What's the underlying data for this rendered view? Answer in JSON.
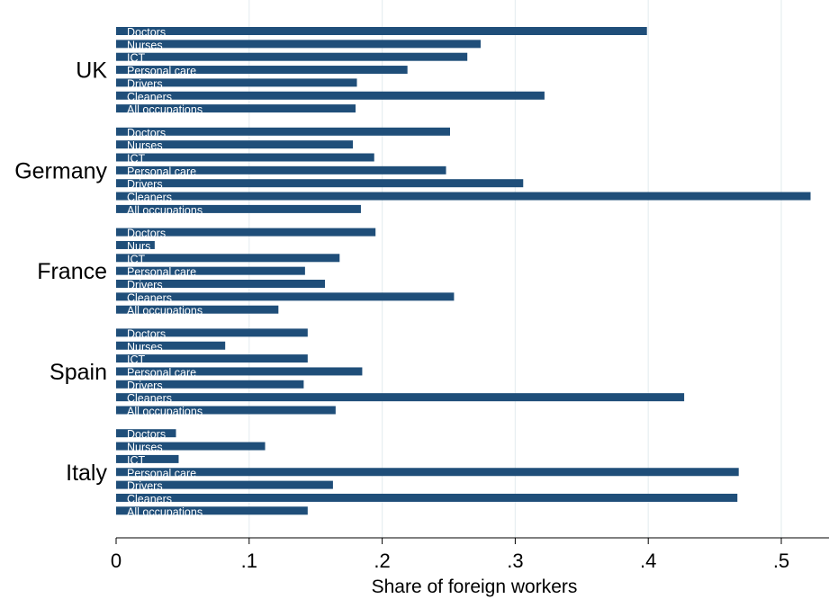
{
  "chart_data": {
    "type": "bar",
    "orientation": "horizontal",
    "xlabel": "Share of foreign workers",
    "xlim": [
      0,
      0.535
    ],
    "xticks": [
      0,
      0.1,
      0.2,
      0.3,
      0.4,
      0.5
    ],
    "xtick_labels": [
      "0",
      ".1",
      ".2",
      ".3",
      ".4",
      ".5"
    ],
    "grid": "vertical",
    "bar_color": "#1f4e79",
    "categories": [
      "Doctors",
      "Nurses",
      "ICT",
      "Personal care",
      "Drivers",
      "Cleaners",
      "All occupations"
    ],
    "groups": [
      {
        "name": "UK",
        "bars": [
          {
            "label": "Doctors",
            "value": 0.399
          },
          {
            "label": "Nurses",
            "value": 0.274
          },
          {
            "label": "ICT",
            "value": 0.264
          },
          {
            "label": "Personal care",
            "value": 0.219
          },
          {
            "label": "Drivers",
            "value": 0.181
          },
          {
            "label": "Cleaners",
            "value": 0.322
          },
          {
            "label": "All occupations",
            "value": 0.18
          }
        ]
      },
      {
        "name": "Germany",
        "bars": [
          {
            "label": "Doctors",
            "value": 0.251
          },
          {
            "label": "Nurses",
            "value": 0.178
          },
          {
            "label": "ICT",
            "value": 0.194
          },
          {
            "label": "Personal care",
            "value": 0.248
          },
          {
            "label": "Drivers",
            "value": 0.306
          },
          {
            "label": "Cleaners",
            "value": 0.522
          },
          {
            "label": "All occupations",
            "value": 0.184
          }
        ]
      },
      {
        "name": "France",
        "bars": [
          {
            "label": "Doctors",
            "value": 0.195
          },
          {
            "label": "Nurs",
            "value": 0.029
          },
          {
            "label": "ICT",
            "value": 0.168
          },
          {
            "label": "Personal care",
            "value": 0.142
          },
          {
            "label": "Drivers",
            "value": 0.157
          },
          {
            "label": "Cleaners",
            "value": 0.254
          },
          {
            "label": "All occupations",
            "value": 0.122
          }
        ]
      },
      {
        "name": "Spain",
        "bars": [
          {
            "label": "Doctors",
            "value": 0.144
          },
          {
            "label": "Nurses",
            "value": 0.082
          },
          {
            "label": "ICT",
            "value": 0.144
          },
          {
            "label": "Personal care",
            "value": 0.185
          },
          {
            "label": "Drivers",
            "value": 0.141
          },
          {
            "label": "Cleaners",
            "value": 0.427
          },
          {
            "label": "All occupations",
            "value": 0.165
          }
        ]
      },
      {
        "name": "Italy",
        "bars": [
          {
            "label": "Doctors",
            "value": 0.045
          },
          {
            "label": "Nurses",
            "value": 0.112
          },
          {
            "label": "ICT",
            "value": 0.047
          },
          {
            "label": "Personal care",
            "value": 0.468
          },
          {
            "label": "Drivers",
            "value": 0.163
          },
          {
            "label": "Cleaners",
            "value": 0.467
          },
          {
            "label": "All occupations",
            "value": 0.144
          }
        ]
      }
    ]
  }
}
